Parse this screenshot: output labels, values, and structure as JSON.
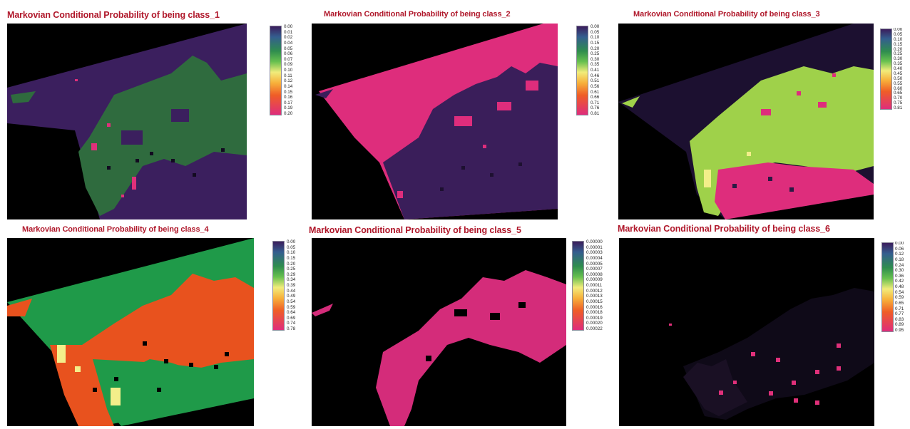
{
  "panels": [
    {
      "title": "Markovian Conditional Probability of being class_1",
      "colorbar_ticks": [
        "0.00",
        "0.01",
        "0.02",
        "0.04",
        "0.05",
        "0.06",
        "0.07",
        "0.09",
        "0.10",
        "0.11",
        "0.12",
        "0.14",
        "0.15",
        "0.16",
        "0.17",
        "0.19",
        "0.20"
      ],
      "colors": {
        "background_region": "#3b1f5e",
        "urban_region": "#2f6b3e",
        "spots": "#e0307a"
      }
    },
    {
      "title": "Markovian Conditional Probability of being class_2",
      "colorbar_ticks": [
        "0.00",
        "0.05",
        "0.10",
        "0.15",
        "0.20",
        "0.25",
        "0.30",
        "0.35",
        "0.41",
        "0.46",
        "0.51",
        "0.56",
        "0.61",
        "0.66",
        "0.71",
        "0.76",
        "0.81"
      ],
      "colors": {
        "background_region": "#de2d7c",
        "urban_region": "#3a1e5a",
        "spots": "#e0307a"
      }
    },
    {
      "title": "Markovian Conditional Probability of being class_3",
      "colorbar_ticks": [
        "0.00",
        "0.05",
        "0.10",
        "0.15",
        "0.20",
        "0.25",
        "0.30",
        "0.35",
        "0.40",
        "0.45",
        "0.50",
        "0.55",
        "0.60",
        "0.65",
        "0.70",
        "0.75",
        "0.81"
      ],
      "colors": {
        "background_region": "#1c1030",
        "urban_region": "#9fd14a",
        "spots": "#de2d7c"
      }
    },
    {
      "title": "Markovian Conditional Probability of being class_4",
      "colorbar_ticks": [
        "0.00",
        "0.05",
        "0.10",
        "0.15",
        "0.20",
        "0.25",
        "0.29",
        "0.34",
        "0.39",
        "0.44",
        "0.49",
        "0.54",
        "0.59",
        "0.64",
        "0.69",
        "0.74",
        "0.78"
      ],
      "colors": {
        "background_region": "#1f9a49",
        "urban_region": "#e8521e",
        "spots": "#f3ee8a"
      }
    },
    {
      "title": "Markovian Conditional Probability of being class_5",
      "colorbar_ticks": [
        "0.00000",
        "0.00001",
        "0.00003",
        "0.00004",
        "0.00005",
        "0.00007",
        "0.00008",
        "0.00009",
        "0.00011",
        "0.00012",
        "0.00013",
        "0.00015",
        "0.00016",
        "0.00018",
        "0.00019",
        "0.00020",
        "0.00022"
      ],
      "colors": {
        "background_region": "#000000",
        "urban_region": "#d42c7a",
        "spots": "#d42c7a"
      }
    },
    {
      "title": "Markovian Conditional Probability of being class_6",
      "colorbar_ticks": [
        "0.00",
        "0.06",
        "0.12",
        "0.18",
        "0.24",
        "0.30",
        "0.36",
        "0.42",
        "0.48",
        "0.54",
        "0.59",
        "0.65",
        "0.71",
        "0.77",
        "0.83",
        "0.89",
        "0.95"
      ],
      "colors": {
        "background_region": "#0d0718",
        "urban_region": "#1a1024",
        "spots": "#e0307a"
      }
    }
  ]
}
